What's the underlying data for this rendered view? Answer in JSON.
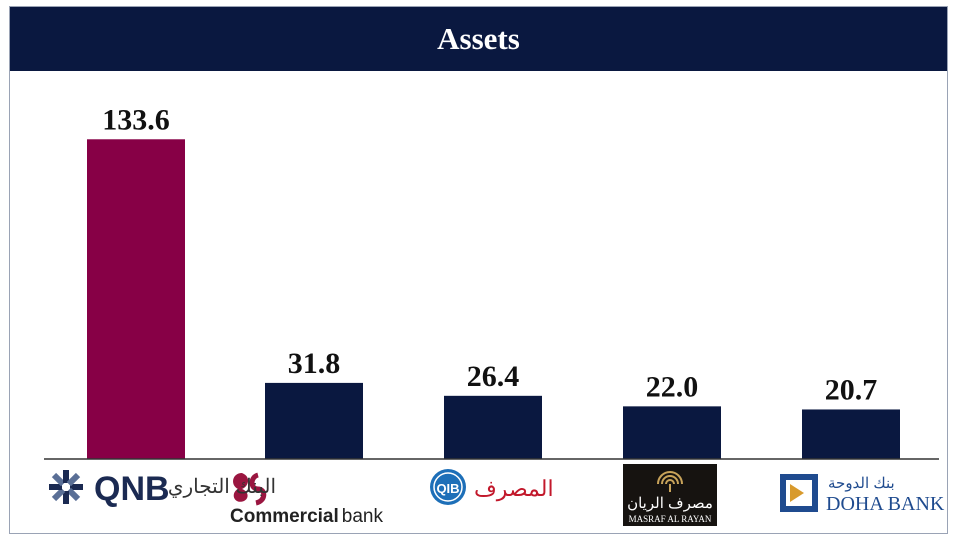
{
  "colors": {
    "header": "#0a1840",
    "highlight": "#870046",
    "bar": "#0a1840",
    "axis": "#333333"
  },
  "chart_data": {
    "type": "bar",
    "title": "Assets",
    "categories": [
      "QNB",
      "Commercial bank",
      "QIB",
      "Masraf Al Rayan",
      "Doha Bank"
    ],
    "values": [
      133.6,
      31.8,
      26.4,
      22.0,
      20.7
    ],
    "value_labels": [
      "133.6",
      "31.8",
      "26.4",
      "22.0",
      "20.7"
    ],
    "highlight_index": 0,
    "ylim": [
      0,
      145
    ],
    "grid": false,
    "legend": "none"
  },
  "logos": {
    "qnb": {
      "text": "QNB",
      "icon": "qnb-star-icon"
    },
    "commercial": {
      "arabic": "البنك التجاري",
      "bold": "Commercial",
      "light": "bank",
      "icon": "commercial-swirl-icon"
    },
    "qib": {
      "badge": "QIB",
      "arabic": "المصرف",
      "icon": "qib-badge-icon"
    },
    "rayan": {
      "arabic": "مصرف الريان",
      "english": "MASRAF AL RAYAN",
      "icon": "rayan-arcs-icon"
    },
    "doha": {
      "arabic": "بنك الدوحة",
      "english": "DOHA BANK",
      "icon": "doha-square-icon"
    }
  }
}
